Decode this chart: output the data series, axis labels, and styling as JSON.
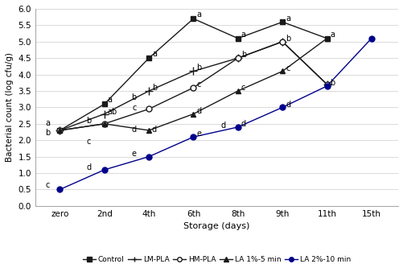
{
  "x_labels": [
    "zero",
    "2nd",
    "4th",
    "6th",
    "8th",
    "9th",
    "11th",
    "15th"
  ],
  "x_positions": [
    0,
    1,
    2,
    3,
    4,
    5,
    6,
    7
  ],
  "series": {
    "Control": {
      "x_idx": [
        0,
        1,
        2,
        3,
        4,
        5,
        6
      ],
      "y": [
        2.3,
        3.1,
        4.5,
        5.7,
        5.1,
        5.6,
        5.1
      ],
      "marker": "s",
      "color": "#1a1a1a",
      "mfc": "#1a1a1a",
      "mec": "#1a1a1a",
      "ms": 5
    },
    "LM-PLA": {
      "x_idx": [
        0,
        1,
        2,
        3,
        4,
        5,
        6
      ],
      "y": [
        2.3,
        2.8,
        3.5,
        4.1,
        4.5,
        5.0,
        3.7
      ],
      "marker": "+",
      "color": "#1a1a1a",
      "mfc": "#1a1a1a",
      "mec": "#1a1a1a",
      "ms": 7
    },
    "HM-PLA": {
      "x_idx": [
        0,
        1,
        2,
        3,
        4,
        5,
        6
      ],
      "y": [
        2.3,
        2.5,
        2.95,
        3.6,
        4.5,
        5.0,
        3.7
      ],
      "marker": "o",
      "color": "#1a1a1a",
      "mfc": "white",
      "mec": "#1a1a1a",
      "ms": 5
    },
    "LA 1%-5 min": {
      "x_idx": [
        0,
        1,
        2,
        3,
        4,
        5,
        6
      ],
      "y": [
        2.3,
        2.5,
        2.3,
        2.8,
        3.5,
        4.1,
        5.1
      ],
      "marker": "^",
      "color": "#1a1a1a",
      "mfc": "#1a1a1a",
      "mec": "#1a1a1a",
      "ms": 5
    },
    "LA 2%-10 min": {
      "x_idx": [
        0,
        1,
        2,
        3,
        4,
        5,
        6,
        7
      ],
      "y": [
        0.5,
        1.1,
        1.5,
        2.1,
        2.4,
        3.0,
        3.65,
        5.1
      ],
      "marker": "o",
      "color": "#00008B",
      "mfc": "#00008B",
      "mec": "#00008B",
      "ms": 5
    }
  },
  "ylabel": "Bacterial count (log cfu/g)",
  "xlabel": "Storage (days)",
  "ylim": [
    0.0,
    6.0
  ],
  "yticks": [
    0.0,
    0.5,
    1.0,
    1.5,
    2.0,
    2.5,
    3.0,
    3.5,
    4.0,
    4.5,
    5.0,
    5.5,
    6.0
  ],
  "background_color": "#ffffff",
  "grid_color": "#cccccc",
  "legend_order": [
    "Control",
    "LM-PLA",
    "HM-PLA",
    "LA 1%-5 min",
    "LA 2%-10 min"
  ],
  "annot_fontsize": 7,
  "axis_fontsize": 7.5,
  "label_fontsize": 8
}
